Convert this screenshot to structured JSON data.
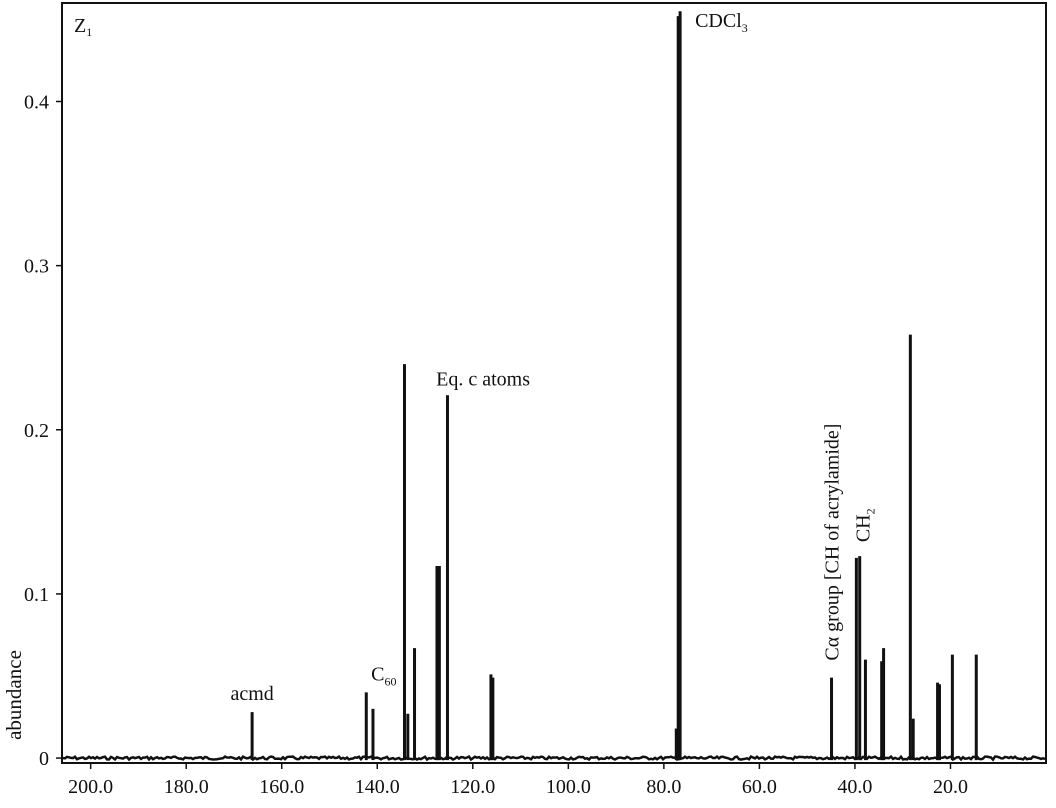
{
  "chart_data": {
    "type": "line",
    "panel_label": {
      "main": "Z",
      "sub": "1"
    },
    "xlabel": "",
    "ylabel": "abundance",
    "x_reversed": true,
    "xlim": [
      206,
      0
    ],
    "ylim": [
      -0.003,
      0.46
    ],
    "x_ticks": [
      200.0,
      180.0,
      160.0,
      140.0,
      120.0,
      100.0,
      80.0,
      60.0,
      40.0,
      20.0
    ],
    "x_tick_labels": [
      "200.0",
      "180.0",
      "160.0",
      "140.0",
      "120.0",
      "100.0",
      "80.0",
      "60.0",
      "40.0",
      "20.0"
    ],
    "y_ticks": [
      0,
      0.1,
      0.2,
      0.3,
      0.4
    ],
    "y_tick_labels": [
      "0",
      "0.1",
      "0.2",
      "0.3",
      "0.4"
    ],
    "series": [
      {
        "points": [
          [
            166.2,
            0.028
          ],
          [
            142.3,
            0.04
          ],
          [
            140.9,
            0.03
          ],
          [
            134.3,
            0.24
          ],
          [
            133.6,
            0.027
          ],
          [
            132.2,
            0.067
          ],
          [
            127.5,
            0.117
          ],
          [
            127.0,
            0.117
          ],
          [
            125.3,
            0.221
          ],
          [
            116.2,
            0.051
          ],
          [
            115.8,
            0.049
          ],
          [
            77.4,
            0.018
          ],
          [
            77.0,
            0.452
          ],
          [
            76.6,
            0.455
          ],
          [
            44.9,
            0.049
          ],
          [
            39.7,
            0.122
          ],
          [
            39.0,
            0.123
          ],
          [
            37.8,
            0.06
          ],
          [
            34.4,
            0.059
          ],
          [
            34.0,
            0.067
          ],
          [
            28.4,
            0.258
          ],
          [
            27.8,
            0.024
          ],
          [
            22.7,
            0.046
          ],
          [
            22.3,
            0.045
          ],
          [
            19.6,
            0.063
          ],
          [
            14.6,
            0.063
          ]
        ]
      }
    ],
    "annotations": [
      {
        "text": "acmd",
        "x": 166.2,
        "y": 0.028
      },
      {
        "text": "C",
        "sub": "60",
        "x": 141.5,
        "y": 0.04
      },
      {
        "text": "Eq. c atoms",
        "x": 126.0,
        "y": 0.221
      },
      {
        "text": "CDCl",
        "sub": "3",
        "x": 76.6,
        "y": 0.455
      },
      {
        "text": "Cα group [CH of acrylamide]",
        "x": 44.9,
        "y": 0.049,
        "rotate": true
      },
      {
        "text": "CH",
        "sub": "2",
        "x": 39.3,
        "y": 0.123,
        "rotate": true
      }
    ],
    "grid": false,
    "legend": "none"
  }
}
